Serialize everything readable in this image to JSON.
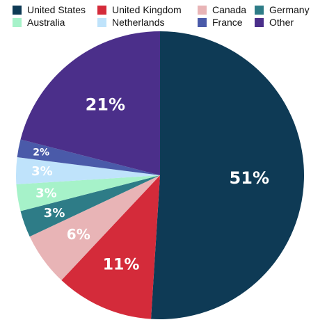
{
  "chart_data": {
    "type": "pie",
    "legend_position": "top",
    "slices": [
      {
        "name": "United States",
        "value": 51,
        "label": "51%",
        "color": "#0e3a55"
      },
      {
        "name": "United Kingdom",
        "value": 11,
        "label": "11%",
        "color": "#d42b3a"
      },
      {
        "name": "Canada",
        "value": 6,
        "label": "6%",
        "color": "#e8b4b6"
      },
      {
        "name": "Germany",
        "value": 3,
        "label": "3%",
        "color": "#2e7c87"
      },
      {
        "name": "Australia",
        "value": 3,
        "label": "3%",
        "color": "#a6f2c9"
      },
      {
        "name": "Netherlands",
        "value": 3,
        "label": "3%",
        "color": "#bfe3fb"
      },
      {
        "name": "France",
        "value": 2,
        "label": "2%",
        "color": "#4a5aa9"
      },
      {
        "name": "Other",
        "value": 21,
        "label": "21%",
        "color": "#4b2f8a"
      }
    ]
  }
}
